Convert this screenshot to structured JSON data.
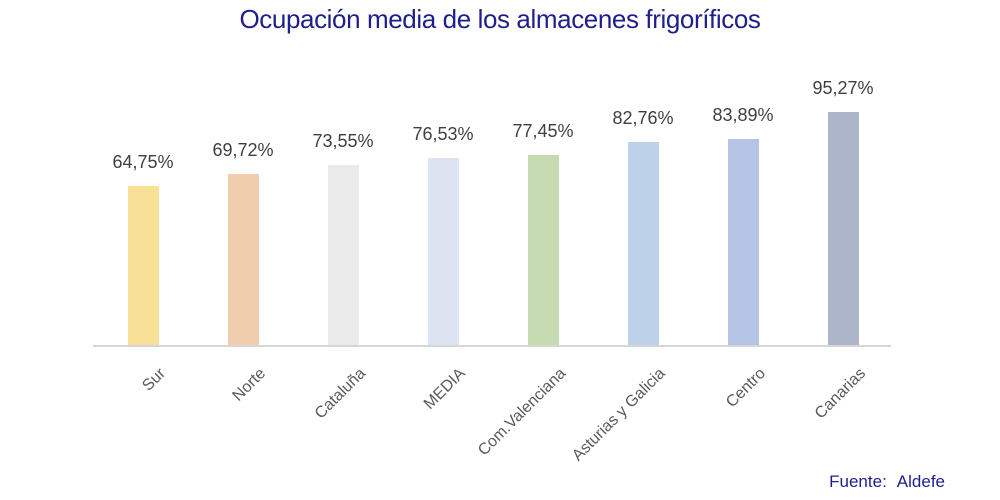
{
  "title": "Ocupación media de los almacenes frigoríficos",
  "source": {
    "label": "Fuente:",
    "value": "Aldefe"
  },
  "colors": {
    "title_text": "#1E1E8C",
    "source_text": "#1E1E8C",
    "value_label_text": "#3F3F3F",
    "category_label_text": "#595959",
    "axis_line": "#D6D6D6",
    "background": "#FFFFFF"
  },
  "chart_data": {
    "type": "bar",
    "title": "Ocupación media de los almacenes frigoríficos",
    "categories": [
      "Sur",
      "Norte",
      "Cataluña",
      "MEDIA",
      "Com.Valenciana",
      "Asturias y Galicia",
      "Centro",
      "Canarias"
    ],
    "values": [
      64.75,
      69.72,
      73.55,
      76.53,
      77.45,
      82.76,
      83.89,
      95.27
    ],
    "value_labels": [
      "64,75%",
      "69,72%",
      "73,55%",
      "76,53%",
      "77,45%",
      "82,76%",
      "83,89%",
      "95,27%"
    ],
    "bar_colors": [
      "#F8E096",
      "#EFCDAD",
      "#EAEAEA",
      "#DCE4F1",
      "#C6DAB2",
      "#BDD2E9",
      "#B5C4E5",
      "#ABB4C8"
    ],
    "xlabel": "",
    "ylabel": "",
    "ylim": [
      0,
      100
    ],
    "grid": false,
    "legend": false,
    "value_label_position": "above-bar",
    "category_label_rotation_deg": -45
  }
}
